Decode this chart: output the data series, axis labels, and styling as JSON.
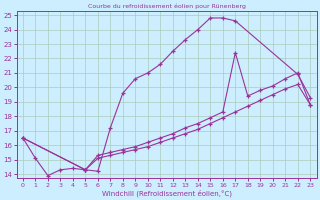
{
  "title": "Courbe du refroidissement éolien pour Rünenberg",
  "xlabel": "Windchill (Refroidissement éolien,°C)",
  "bg_color": "#cceeff",
  "grid_color": "#aaccbb",
  "line_color": "#993399",
  "xlim": [
    -0.5,
    23.5
  ],
  "ylim": [
    13.7,
    25.3
  ],
  "xticks": [
    0,
    1,
    2,
    3,
    4,
    5,
    6,
    7,
    8,
    9,
    10,
    11,
    12,
    13,
    14,
    15,
    16,
    17,
    18,
    19,
    20,
    21,
    22,
    23
  ],
  "yticks": [
    14,
    15,
    16,
    17,
    18,
    19,
    20,
    21,
    22,
    23,
    24,
    25
  ],
  "line1": {
    "x": [
      0,
      1,
      2,
      3,
      4,
      5,
      6,
      7,
      8,
      9,
      10,
      11,
      12,
      13,
      14,
      15,
      16,
      17,
      22,
      23
    ],
    "y": [
      16.5,
      15.1,
      13.9,
      14.3,
      14.4,
      14.3,
      14.2,
      17.2,
      19.6,
      20.6,
      21.0,
      21.6,
      22.5,
      23.3,
      24.0,
      24.8,
      24.8,
      24.6,
      20.9,
      19.3
    ]
  },
  "line2": {
    "x": [
      0,
      5,
      6,
      7,
      8,
      9,
      10,
      11,
      12,
      13,
      14,
      15,
      16,
      17,
      18,
      19,
      20,
      21,
      22,
      23
    ],
    "y": [
      16.5,
      14.3,
      15.3,
      15.5,
      15.7,
      15.9,
      16.2,
      16.5,
      16.8,
      17.2,
      17.5,
      17.9,
      18.3,
      22.4,
      19.4,
      19.8,
      20.1,
      20.6,
      21.0,
      18.8
    ]
  },
  "line3": {
    "x": [
      0,
      5,
      6,
      7,
      8,
      9,
      10,
      11,
      12,
      13,
      14,
      15,
      16,
      17,
      18,
      19,
      20,
      21,
      22,
      23
    ],
    "y": [
      16.5,
      14.3,
      15.1,
      15.3,
      15.5,
      15.7,
      15.9,
      16.2,
      16.5,
      16.8,
      17.1,
      17.5,
      17.9,
      18.3,
      18.7,
      19.1,
      19.5,
      19.9,
      20.2,
      18.8
    ]
  }
}
